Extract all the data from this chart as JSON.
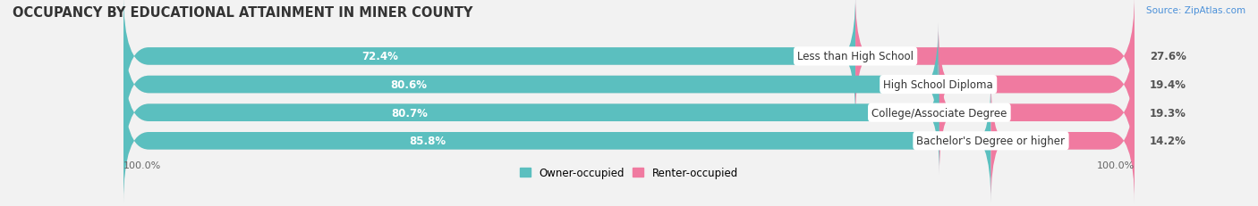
{
  "title": "OCCUPANCY BY EDUCATIONAL ATTAINMENT IN MINER COUNTY",
  "source": "Source: ZipAtlas.com",
  "categories": [
    "Less than High School",
    "High School Diploma",
    "College/Associate Degree",
    "Bachelor's Degree or higher"
  ],
  "owner_pct": [
    72.4,
    80.6,
    80.7,
    85.8
  ],
  "renter_pct": [
    27.6,
    19.4,
    19.3,
    14.2
  ],
  "owner_color": "#5bbfbf",
  "renter_color": "#f07aa0",
  "bg_color": "#f2f2f2",
  "bar_bg_color": "#e0e0e0",
  "title_fontsize": 10.5,
  "label_fontsize": 8.5,
  "bar_height": 0.62,
  "axis_label_left": "100.0%",
  "axis_label_right": "100.0%",
  "legend_owner": "Owner-occupied",
  "legend_renter": "Renter-occupied"
}
